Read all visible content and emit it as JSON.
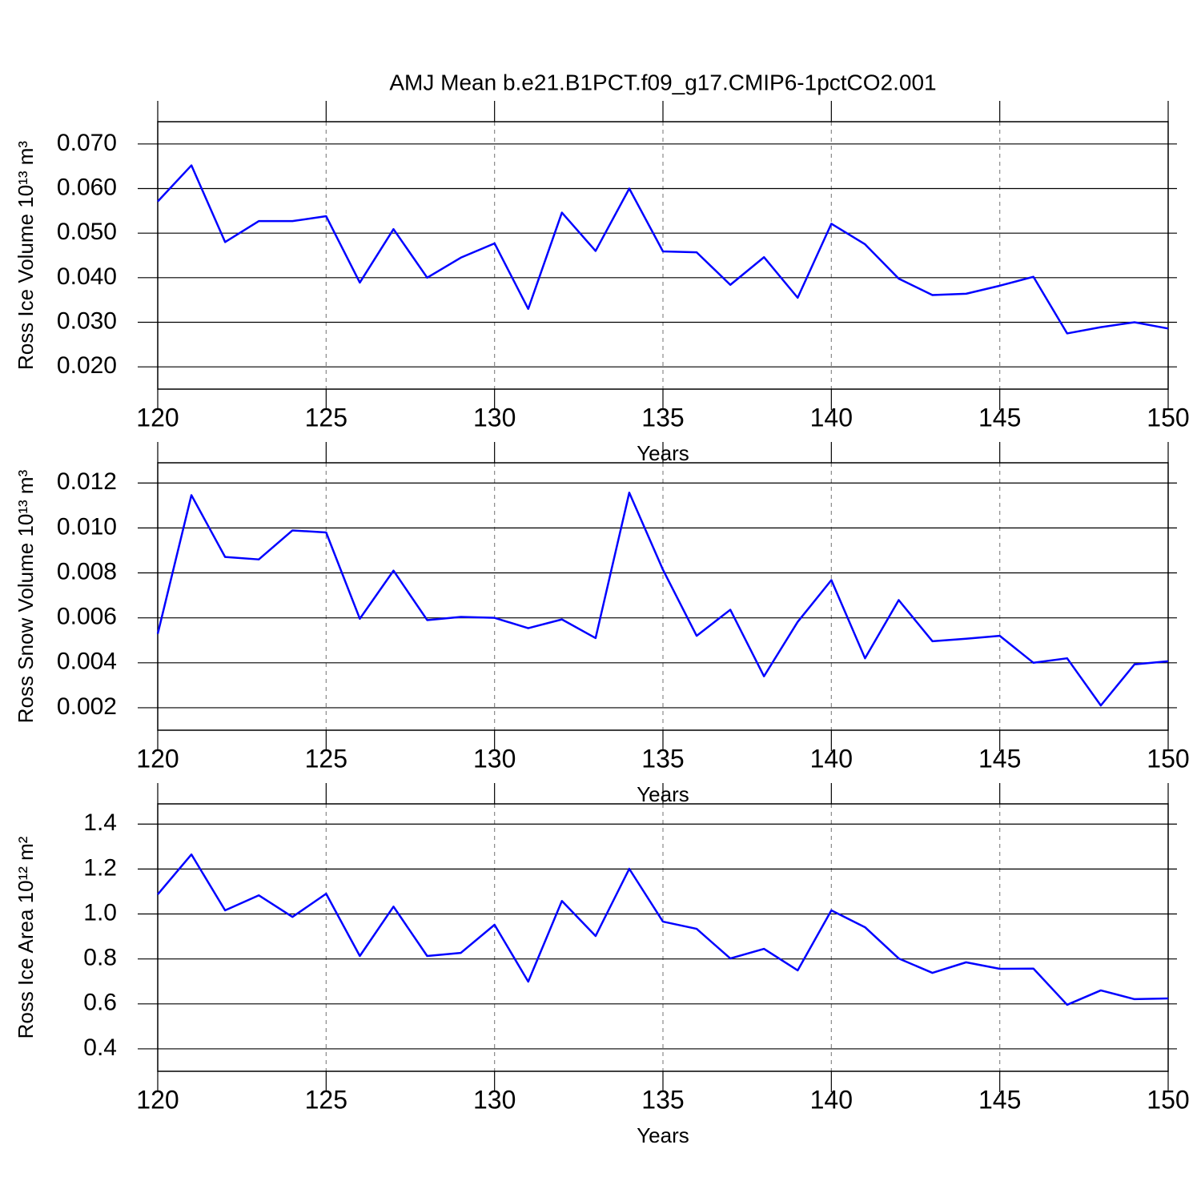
{
  "chart_data": [
    {
      "type": "line",
      "title": "AMJ Mean b.e21.B1PCT.f09_g17.CMIP6-1pctCO2.001",
      "ylabel": "Ross Ice Volume 10¹³ m³",
      "xlabel": "Years",
      "x": [
        120,
        121,
        122,
        123,
        124,
        125,
        126,
        127,
        128,
        129,
        130,
        131,
        132,
        133,
        134,
        135,
        136,
        137,
        138,
        139,
        140,
        141,
        142,
        143,
        144,
        145,
        146,
        147,
        148,
        149,
        150
      ],
      "series": [
        {
          "color": "#0000ff",
          "values": [
            0.0571,
            0.0652,
            0.048,
            0.0527,
            0.0527,
            0.0538,
            0.0389,
            0.0509,
            0.04,
            0.0445,
            0.0477,
            0.033,
            0.0546,
            0.046,
            0.06,
            0.0459,
            0.0457,
            0.0384,
            0.0446,
            0.0355,
            0.0521,
            0.0475,
            0.0398,
            0.0361,
            0.0364,
            0.0382,
            0.0402,
            0.0275,
            0.0289,
            0.03,
            0.0286
          ]
        }
      ],
      "xlim": [
        120,
        150
      ],
      "xticks": [
        120,
        125,
        130,
        135,
        140,
        145,
        150
      ],
      "ylim": [
        0.015,
        0.075
      ],
      "yticks": [
        {
          "value": 0.02,
          "label": "0.020"
        },
        {
          "value": 0.03,
          "label": "0.030"
        },
        {
          "value": 0.04,
          "label": "0.040"
        },
        {
          "value": 0.05,
          "label": "0.050"
        },
        {
          "value": 0.06,
          "label": "0.060"
        },
        {
          "value": 0.07,
          "label": "0.070"
        }
      ],
      "xgrid": true,
      "ygrid": true
    },
    {
      "type": "line",
      "ylabel": "Ross Snow Volume 10¹³ m³",
      "xlabel": "Years",
      "x": [
        120,
        121,
        122,
        123,
        124,
        125,
        126,
        127,
        128,
        129,
        130,
        131,
        132,
        133,
        134,
        135,
        136,
        137,
        138,
        139,
        140,
        141,
        142,
        143,
        144,
        145,
        146,
        147,
        148,
        149,
        150
      ],
      "series": [
        {
          "color": "#0000ff",
          "values": [
            0.00529,
            0.01146,
            0.00871,
            0.0086,
            0.00989,
            0.0098,
            0.00596,
            0.0081,
            0.0059,
            0.00604,
            0.006,
            0.00554,
            0.00593,
            0.0051,
            0.01157,
            0.00814,
            0.0052,
            0.00636,
            0.0034,
            0.00582,
            0.00768,
            0.0042,
            0.00679,
            0.00496,
            0.00507,
            0.0052,
            0.004,
            0.0042,
            0.0021,
            0.00393,
            0.00407
          ]
        }
      ],
      "xlim": [
        120,
        150
      ],
      "xticks": [
        120,
        125,
        130,
        135,
        140,
        145,
        150
      ],
      "ylim": [
        0.001,
        0.0129
      ],
      "yticks": [
        0.002,
        0.004,
        0.006,
        0.008,
        {
          "value": 0.01,
          "label": "0.010"
        },
        0.012
      ],
      "xgrid": true,
      "ygrid": true
    },
    {
      "type": "line",
      "ylabel": "Ross Ice Area 10¹² m²",
      "xlabel": "Years",
      "x": [
        120,
        121,
        122,
        123,
        124,
        125,
        126,
        127,
        128,
        129,
        130,
        131,
        132,
        133,
        134,
        135,
        136,
        137,
        138,
        139,
        140,
        141,
        142,
        143,
        144,
        145,
        146,
        147,
        148,
        149,
        150
      ],
      "series": [
        {
          "color": "#0000ff",
          "values": [
            1.087,
            1.265,
            1.016,
            1.083,
            0.987,
            1.09,
            0.813,
            1.033,
            0.813,
            0.827,
            0.952,
            0.699,
            1.058,
            0.902,
            1.201,
            0.966,
            0.934,
            0.802,
            0.845,
            0.749,
            1.016,
            0.941,
            0.802,
            0.738,
            0.785,
            0.756,
            0.757,
            0.596,
            0.66,
            0.621,
            0.624
          ]
        }
      ],
      "xlim": [
        120,
        150
      ],
      "xticks": [
        120,
        125,
        130,
        135,
        140,
        145,
        150
      ],
      "ylim": [
        0.3,
        1.49
      ],
      "yticks": [
        0.4,
        0.6,
        0.8,
        {
          "value": 1.0,
          "label": "1.0"
        },
        1.2,
        1.4
      ],
      "xgrid": true,
      "ygrid": true
    }
  ]
}
